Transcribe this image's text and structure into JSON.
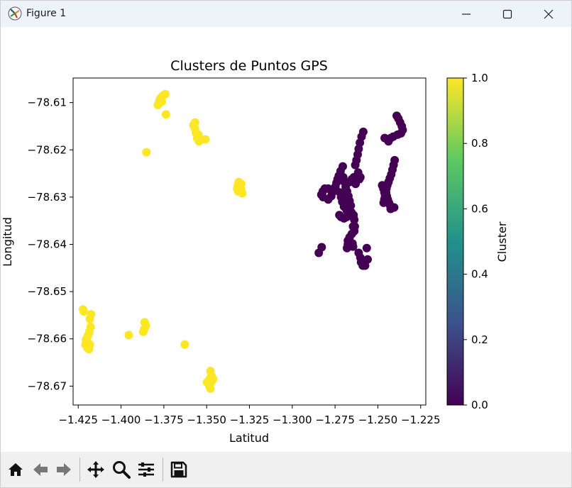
{
  "window": {
    "title": "Figure 1",
    "app_icon": "matplotlib-icon",
    "controls": [
      "minimize-icon",
      "maximize-icon",
      "close-icon"
    ]
  },
  "toolbar": {
    "buttons": [
      "home-icon",
      "back-icon",
      "forward-icon",
      "pan-icon",
      "zoom-icon",
      "configure-subplots-icon",
      "save-icon"
    ]
  },
  "chart_data": {
    "type": "scatter",
    "title": "Clusters de Puntos GPS",
    "xlabel": "Latitud",
    "ylabel": "Longitud",
    "xlim": [
      -1.428,
      -1.222
    ],
    "ylim": [
      -78.674,
      -78.6048
    ],
    "x_ticks": [
      -1.425,
      -1.4,
      -1.375,
      -1.35,
      -1.325,
      -1.3,
      -1.275,
      -1.25,
      -1.225
    ],
    "x_tick_labels": [
      "−1.425",
      "−1.400",
      "−1.375",
      "−1.350",
      "−1.325",
      "−1.300",
      "−1.275",
      "−1.250",
      "−1.225"
    ],
    "y_ticks": [
      -78.61,
      -78.62,
      -78.63,
      -78.64,
      -78.65,
      -78.66,
      -78.67
    ],
    "y_tick_labels": [
      "−78.61",
      "−78.62",
      "−78.63",
      "−78.64",
      "−78.65",
      "−78.66",
      "−78.67"
    ],
    "colorbar": {
      "label": "Cluster",
      "range": [
        0.0,
        1.0
      ],
      "ticks": [
        0.0,
        0.2,
        0.4,
        0.6,
        0.8,
        1.0
      ],
      "tick_labels": [
        "0.0",
        "0.2",
        "0.4",
        "0.6",
        "0.8",
        "1.0"
      ],
      "colormap": "viridis",
      "colors": [
        "#440154",
        "#3b528b",
        "#21918c",
        "#5ec962",
        "#fde725"
      ]
    },
    "series": [
      {
        "cluster": 0,
        "color": "#440154",
        "points": [
          [
            -1.239,
            -78.6128
          ],
          [
            -1.238,
            -78.6134
          ],
          [
            -1.237,
            -78.6142
          ],
          [
            -1.236,
            -78.615
          ],
          [
            -1.2355,
            -78.6158
          ],
          [
            -1.2365,
            -78.6165
          ],
          [
            -1.2385,
            -78.6168
          ],
          [
            -1.241,
            -78.6172
          ],
          [
            -1.2425,
            -78.6175
          ],
          [
            -1.246,
            -78.6175
          ],
          [
            -1.2438,
            -78.6182
          ],
          [
            -1.2402,
            -78.6222
          ],
          [
            -1.2408,
            -78.6232
          ],
          [
            -1.2415,
            -78.6242
          ],
          [
            -1.2422,
            -78.6252
          ],
          [
            -1.243,
            -78.626
          ],
          [
            -1.2438,
            -78.6268
          ],
          [
            -1.2445,
            -78.6275
          ],
          [
            -1.245,
            -78.6282
          ],
          [
            -1.2452,
            -78.629
          ],
          [
            -1.2448,
            -78.6298
          ],
          [
            -1.2442,
            -78.6305
          ],
          [
            -1.2435,
            -78.6312
          ],
          [
            -1.2428,
            -78.6318
          ],
          [
            -1.2425,
            -78.6325
          ],
          [
            -1.2405,
            -78.6322
          ],
          [
            -1.2475,
            -78.6275
          ],
          [
            -1.2468,
            -78.6282
          ],
          [
            -1.2462,
            -78.629
          ],
          [
            -1.2458,
            -78.6298
          ],
          [
            -1.2462,
            -78.6305
          ],
          [
            -1.2466,
            -78.6312
          ],
          [
            -1.2455,
            -78.6282
          ],
          [
            -1.2585,
            -78.6162
          ],
          [
            -1.2595,
            -78.6172
          ],
          [
            -1.2605,
            -78.6185
          ],
          [
            -1.2612,
            -78.6198
          ],
          [
            -1.2618,
            -78.621
          ],
          [
            -1.2625,
            -78.6222
          ],
          [
            -1.2632,
            -78.6232
          ],
          [
            -1.2705,
            -78.6235
          ],
          [
            -1.2718,
            -78.6245
          ],
          [
            -1.2728,
            -78.6255
          ],
          [
            -1.2735,
            -78.6262
          ],
          [
            -1.2742,
            -78.627
          ],
          [
            -1.2748,
            -78.6278
          ],
          [
            -1.2752,
            -78.6285
          ],
          [
            -1.276,
            -78.6288
          ],
          [
            -1.2775,
            -78.6285
          ],
          [
            -1.279,
            -78.6282
          ],
          [
            -1.281,
            -78.6282
          ],
          [
            -1.2822,
            -78.6288
          ],
          [
            -1.283,
            -78.6295
          ],
          [
            -1.282,
            -78.63
          ],
          [
            -1.279,
            -78.6305
          ],
          [
            -1.2772,
            -78.6298
          ],
          [
            -1.2702,
            -78.6258
          ],
          [
            -1.2695,
            -78.6268
          ],
          [
            -1.2688,
            -78.6278
          ],
          [
            -1.268,
            -78.6288
          ],
          [
            -1.2672,
            -78.6298
          ],
          [
            -1.2665,
            -78.6308
          ],
          [
            -1.2658,
            -78.6318
          ],
          [
            -1.2665,
            -78.6326
          ],
          [
            -1.2682,
            -78.6328
          ],
          [
            -1.2698,
            -78.632
          ],
          [
            -1.2708,
            -78.631
          ],
          [
            -1.2715,
            -78.63
          ],
          [
            -1.2722,
            -78.629
          ],
          [
            -1.2615,
            -78.6248
          ],
          [
            -1.2622,
            -78.6255
          ],
          [
            -1.264,
            -78.6258
          ],
          [
            -1.2652,
            -78.6262
          ],
          [
            -1.2665,
            -78.6268
          ],
          [
            -1.2608,
            -78.6262
          ],
          [
            -1.2602,
            -78.6258
          ],
          [
            -1.263,
            -78.6272
          ],
          [
            -1.2725,
            -78.6338
          ],
          [
            -1.2715,
            -78.6342
          ],
          [
            -1.2698,
            -78.6345
          ],
          [
            -1.2682,
            -78.6342
          ],
          [
            -1.2672,
            -78.6335
          ],
          [
            -1.2655,
            -78.6332
          ],
          [
            -1.2642,
            -78.6338
          ],
          [
            -1.2638,
            -78.6348
          ],
          [
            -1.2645,
            -78.6362
          ],
          [
            -1.2638,
            -78.6372
          ],
          [
            -1.2652,
            -78.6378
          ],
          [
            -1.2665,
            -78.6385
          ],
          [
            -1.2675,
            -78.6392
          ],
          [
            -1.2675,
            -78.64
          ],
          [
            -1.2665,
            -78.6402
          ],
          [
            -1.2648,
            -78.6398
          ],
          [
            -1.2645,
            -78.6405
          ],
          [
            -1.268,
            -78.6408
          ],
          [
            -1.2612,
            -78.6418
          ],
          [
            -1.2602,
            -78.6428
          ],
          [
            -1.2598,
            -78.6438
          ],
          [
            -1.2588,
            -78.6445
          ],
          [
            -1.2575,
            -78.6445
          ],
          [
            -1.256,
            -78.6432
          ],
          [
            -1.2565,
            -78.6408
          ],
          [
            -1.2635,
            -78.6362
          ],
          [
            -1.2845,
            -78.6418
          ],
          [
            -1.2828,
            -78.6406
          ]
        ]
      },
      {
        "cluster": 1,
        "color": "#fde725",
        "points": [
          [
            -1.3742,
            -78.6082
          ],
          [
            -1.3755,
            -78.6085
          ],
          [
            -1.3768,
            -78.609
          ],
          [
            -1.3775,
            -78.6095
          ],
          [
            -1.378,
            -78.6102
          ],
          [
            -1.3785,
            -78.6105
          ],
          [
            -1.3762,
            -78.6098
          ],
          [
            -1.3738,
            -78.6125
          ],
          [
            -1.3578,
            -78.6148
          ],
          [
            -1.3568,
            -78.6155
          ],
          [
            -1.3562,
            -78.6165
          ],
          [
            -1.3555,
            -78.6175
          ],
          [
            -1.3545,
            -78.6182
          ],
          [
            -1.3535,
            -78.6178
          ],
          [
            -1.3508,
            -78.6178
          ],
          [
            -1.3548,
            -78.6168
          ],
          [
            -1.3568,
            -78.6142
          ],
          [
            -1.3852,
            -78.6205
          ],
          [
            -1.3312,
            -78.6268
          ],
          [
            -1.3318,
            -78.6275
          ],
          [
            -1.3322,
            -78.6282
          ],
          [
            -1.3315,
            -78.6288
          ],
          [
            -1.3298,
            -78.6285
          ],
          [
            -1.3305,
            -78.6278
          ],
          [
            -1.3292,
            -78.6292
          ],
          [
            -1.3298,
            -78.6272
          ],
          [
            -1.4222,
            -78.6538
          ],
          [
            -1.4218,
            -78.6542
          ],
          [
            -1.4175,
            -78.6548
          ],
          [
            -1.4182,
            -78.6558
          ],
          [
            -1.4178,
            -78.6575
          ],
          [
            -1.4185,
            -78.6585
          ],
          [
            -1.4192,
            -78.6592
          ],
          [
            -1.4198,
            -78.6598
          ],
          [
            -1.4205,
            -78.6602
          ],
          [
            -1.4208,
            -78.6612
          ],
          [
            -1.4198,
            -78.6618
          ],
          [
            -1.4188,
            -78.6622
          ],
          [
            -1.4182,
            -78.6612
          ],
          [
            -1.3862,
            -78.6565
          ],
          [
            -1.3855,
            -78.6572
          ],
          [
            -1.3865,
            -78.658
          ],
          [
            -1.387,
            -78.6585
          ],
          [
            -1.3955,
            -78.6592
          ],
          [
            -1.3628,
            -78.6612
          ],
          [
            -1.3478,
            -78.6668
          ],
          [
            -1.3472,
            -78.6678
          ],
          [
            -1.3482,
            -78.6685
          ],
          [
            -1.3475,
            -78.6692
          ],
          [
            -1.3485,
            -78.6698
          ],
          [
            -1.3478,
            -78.6705
          ],
          [
            -1.347,
            -78.6688
          ],
          [
            -1.3498,
            -78.6692
          ],
          [
            -1.3462,
            -78.6685
          ]
        ]
      }
    ]
  }
}
